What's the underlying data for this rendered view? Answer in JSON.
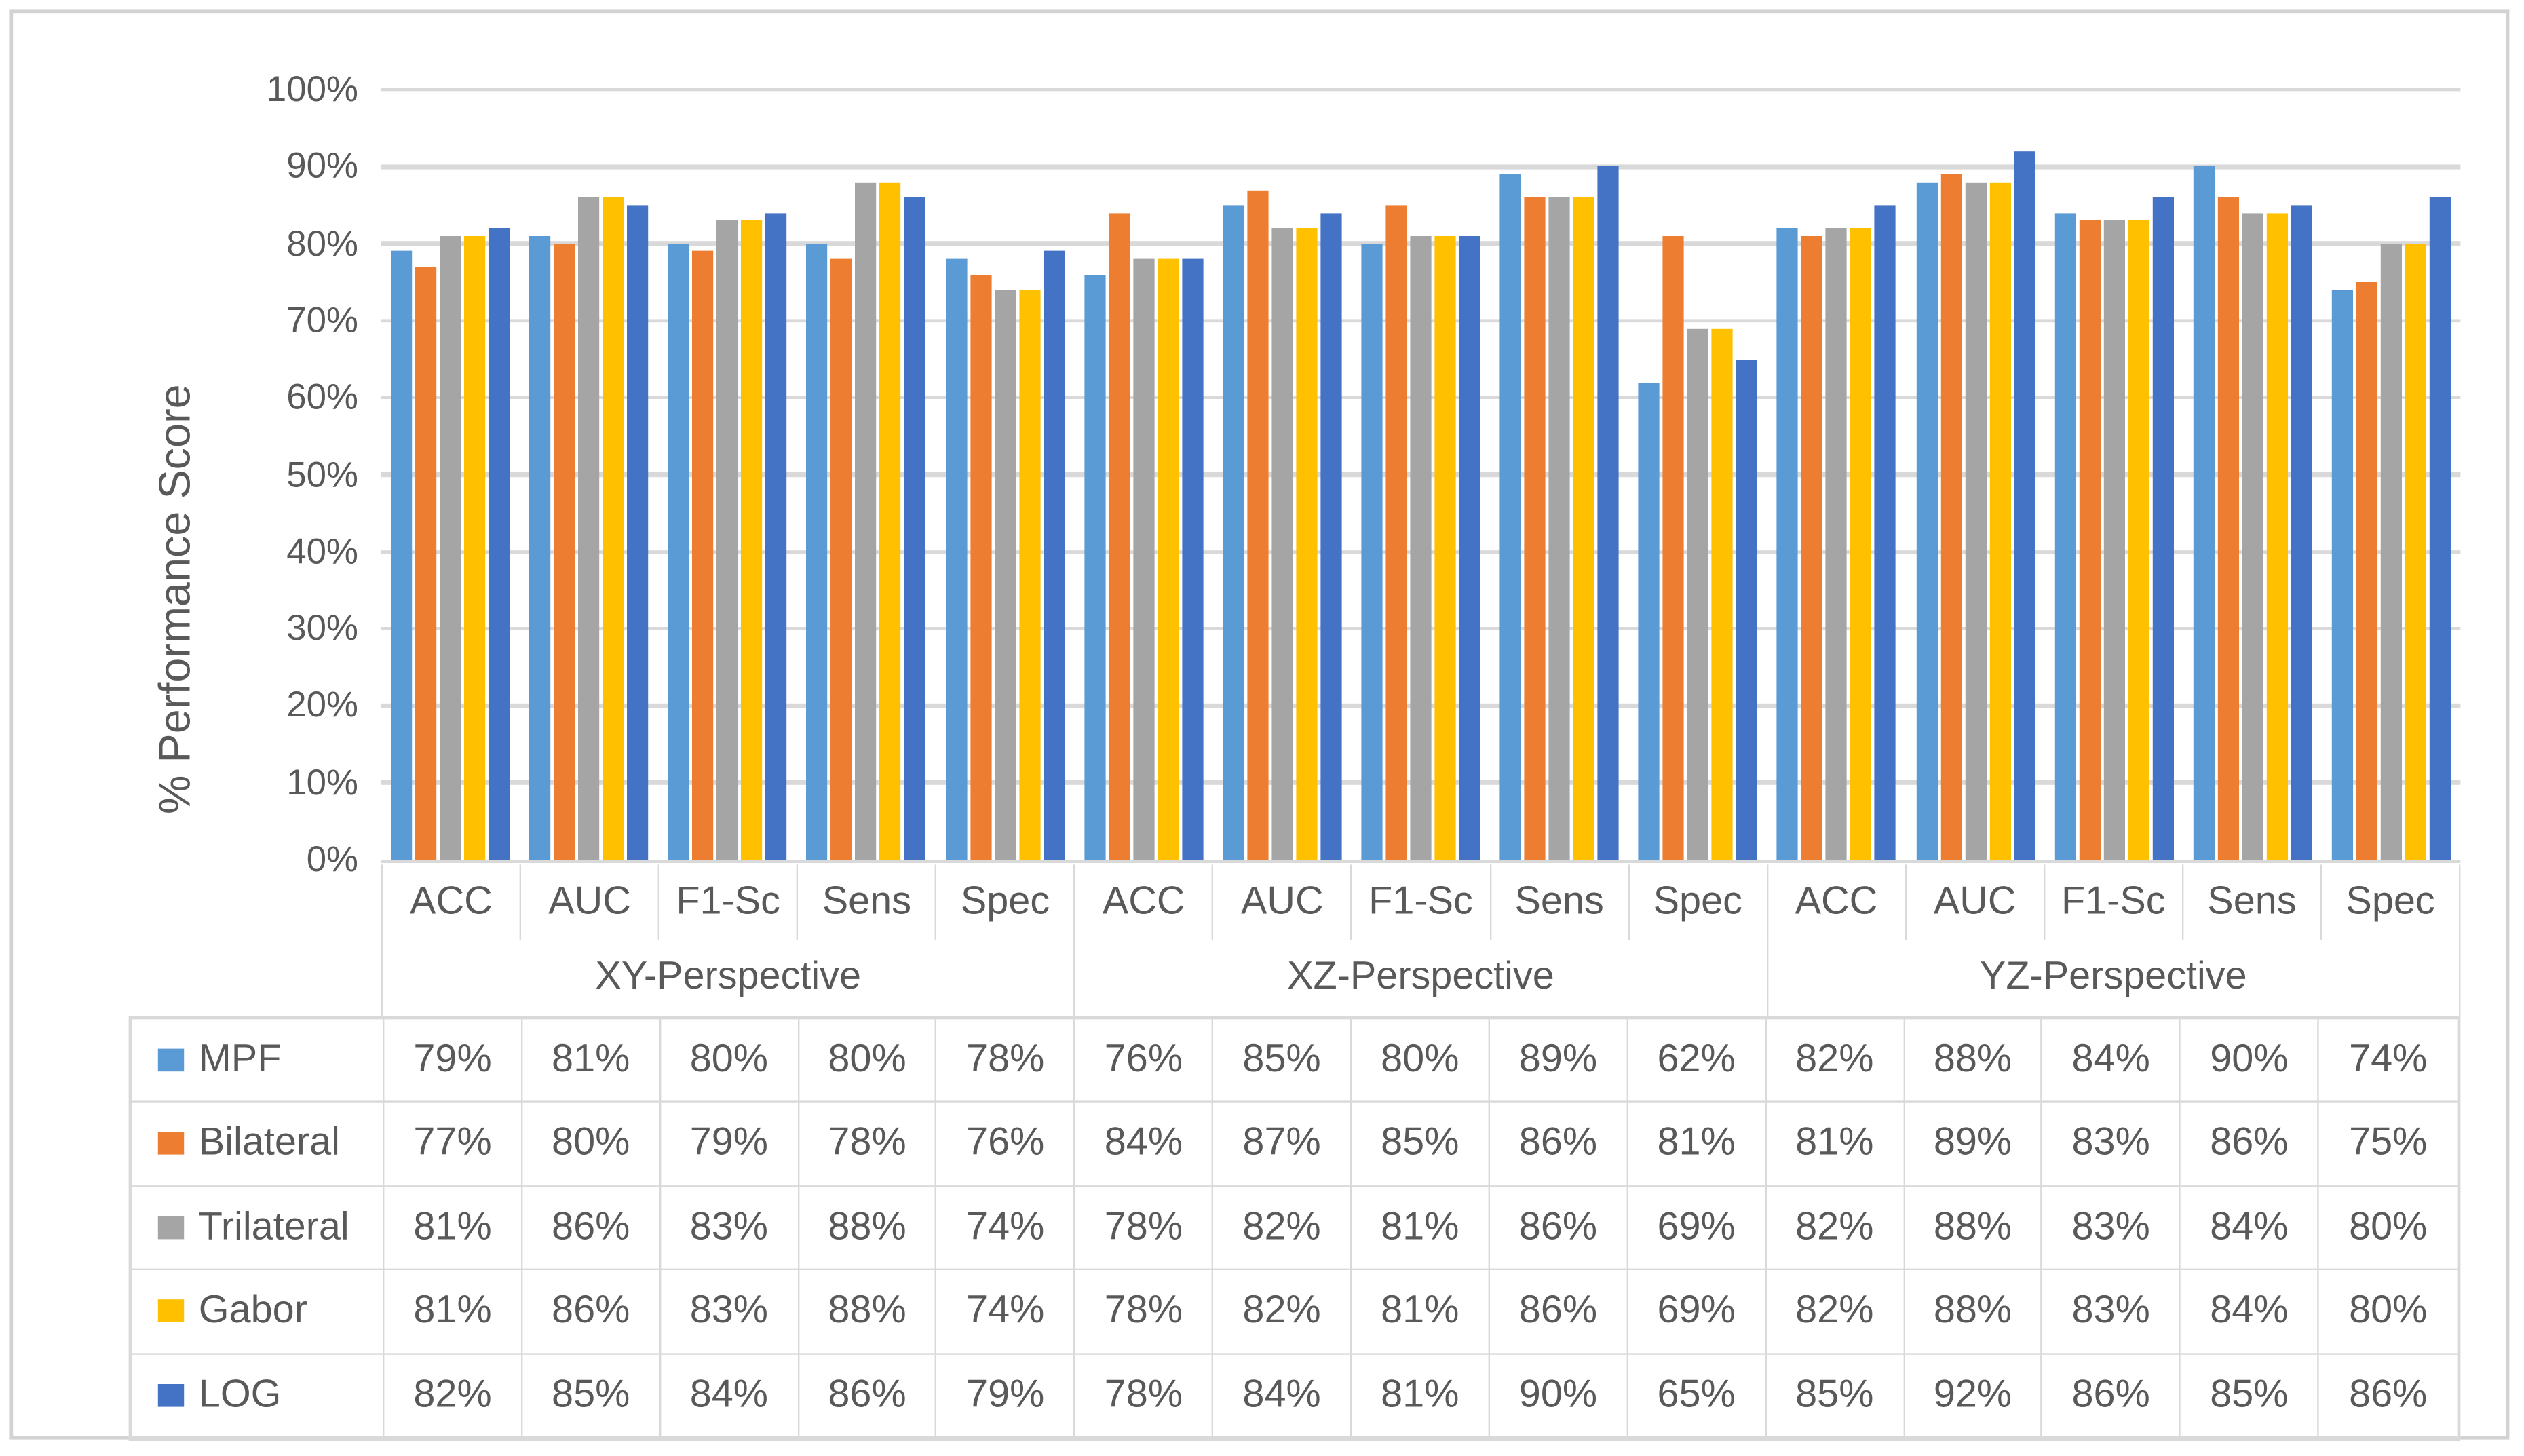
{
  "chart_data": {
    "type": "bar",
    "title": "",
    "xlabel": "",
    "ylabel": "% Performance Score",
    "ylim": [
      0,
      100
    ],
    "ytick_step": 10,
    "ytick_labels": [
      "0%",
      "10%",
      "20%",
      "30%",
      "40%",
      "50%",
      "60%",
      "70%",
      "80%",
      "90%",
      "100%"
    ],
    "grid": true,
    "legend_position": "attached-data-table-left",
    "perspectives": [
      "XY-Perspective",
      "XZ-Perspective",
      "YZ-Perspective"
    ],
    "metrics": [
      "ACC",
      "AUC",
      "F1-Sc",
      "Sens",
      "Spec"
    ],
    "category_note": "15 groups = metrics repeated within each perspective",
    "series": [
      {
        "name": "MPF",
        "color": "#5B9BD5",
        "values": [
          79,
          81,
          80,
          80,
          78,
          76,
          85,
          80,
          89,
          62,
          82,
          88,
          84,
          90,
          74
        ]
      },
      {
        "name": "Bilateral",
        "color": "#ED7D31",
        "values": [
          77,
          80,
          79,
          78,
          76,
          84,
          87,
          85,
          86,
          81,
          81,
          89,
          83,
          86,
          75
        ]
      },
      {
        "name": "Trilateral",
        "color": "#A5A5A5",
        "values": [
          81,
          86,
          83,
          88,
          74,
          78,
          82,
          81,
          86,
          69,
          82,
          88,
          83,
          84,
          80
        ]
      },
      {
        "name": "Gabor",
        "color": "#FFC000",
        "values": [
          81,
          86,
          83,
          88,
          74,
          78,
          82,
          81,
          86,
          69,
          82,
          88,
          83,
          84,
          80
        ]
      },
      {
        "name": "LOG",
        "color": "#4472C4",
        "values": [
          82,
          85,
          84,
          86,
          79,
          78,
          84,
          81,
          90,
          65,
          85,
          92,
          86,
          85,
          86
        ]
      }
    ],
    "value_suffix": "%",
    "colors": {
      "text": "#595959",
      "gridline": "#d9d9d9",
      "table_border": "#d9d9d9",
      "outer_frame": "#d2d2d2",
      "background": "#ffffff"
    }
  }
}
